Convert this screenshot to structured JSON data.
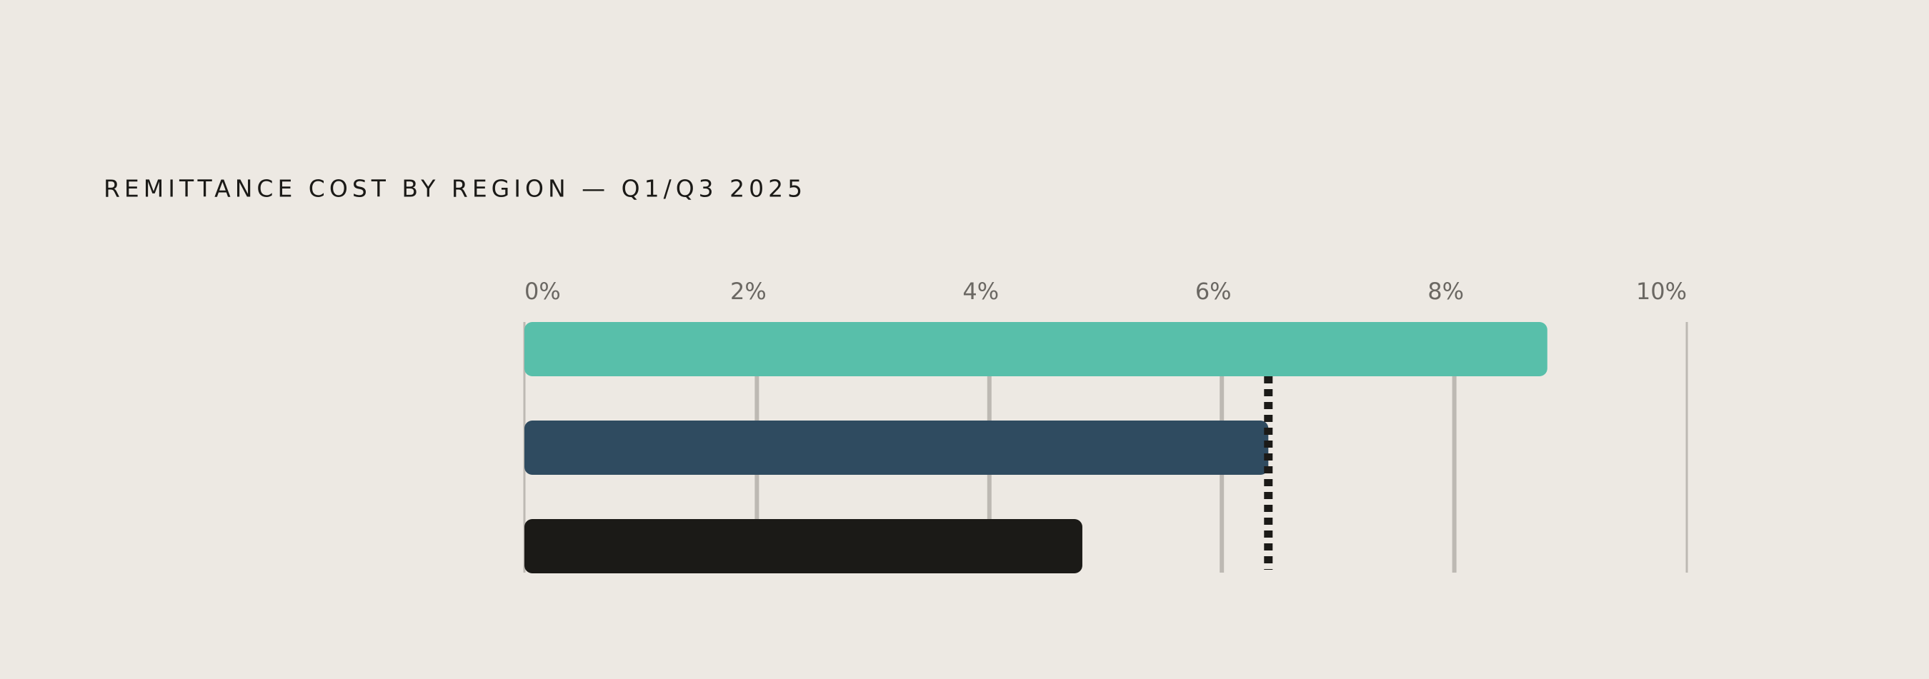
{
  "chart_data": {
    "type": "hbar",
    "title": "REMITTANCE COST BY REGION — Q1/Q3 2025",
    "categories": [
      null,
      null,
      null
    ],
    "values": [
      8.8,
      6.4,
      4.8
    ],
    "colors": [
      "#58bfaa",
      "#2f4b60",
      "#1b1a17"
    ],
    "xlim": [
      0,
      10
    ],
    "xticks": [
      {
        "value": 0,
        "label": "0%"
      },
      {
        "value": 2,
        "label": "2%"
      },
      {
        "value": 4,
        "label": "4%"
      },
      {
        "value": 6,
        "label": "6%"
      },
      {
        "value": 8,
        "label": "8%"
      },
      {
        "value": 10,
        "label": "10%"
      }
    ],
    "grid": true,
    "reference_line": {
      "value": 6.4,
      "color": "#1b1a17"
    }
  }
}
